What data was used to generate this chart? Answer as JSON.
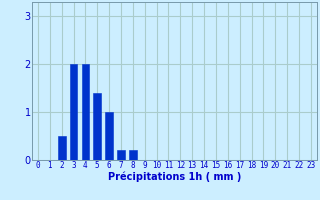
{
  "values": [
    0,
    0,
    0.5,
    2,
    2,
    1.4,
    1,
    0.2,
    0.2,
    0,
    0,
    0,
    0,
    0,
    0,
    0,
    0,
    0,
    0,
    0,
    0,
    0,
    0,
    0
  ],
  "bar_color": "#0033cc",
  "bar_edge_color": "#0033cc",
  "background_color": "#cceeff",
  "grid_color": "#aacccc",
  "xlabel": "Précipitations 1h ( mm )",
  "xlabel_color": "#0000cc",
  "tick_color": "#0000cc",
  "ylim": [
    0,
    3.3
  ],
  "yticks": [
    0,
    1,
    2,
    3
  ],
  "xlim": [
    -0.5,
    23.5
  ],
  "xticks": [
    0,
    1,
    2,
    3,
    4,
    5,
    6,
    7,
    8,
    9,
    10,
    11,
    12,
    13,
    14,
    15,
    16,
    17,
    18,
    19,
    20,
    21,
    22,
    23
  ],
  "bar_width": 0.65,
  "xlabel_fontsize": 7,
  "tick_fontsize": 5.5,
  "ytick_fontsize": 7
}
